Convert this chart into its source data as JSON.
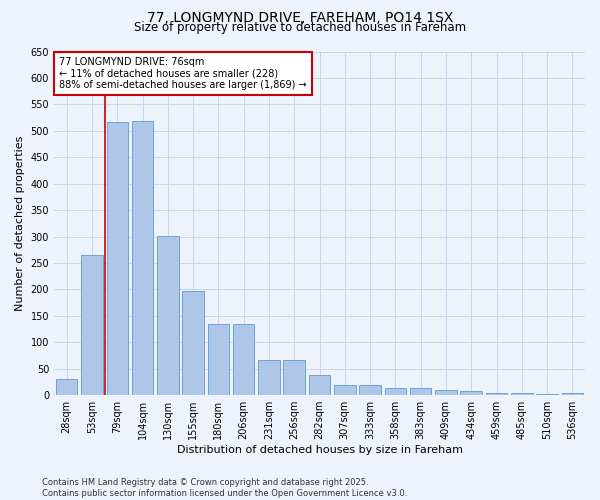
{
  "title_line1": "77, LONGMYND DRIVE, FAREHAM, PO14 1SX",
  "title_line2": "Size of property relative to detached houses in Fareham",
  "xlabel": "Distribution of detached houses by size in Fareham",
  "ylabel": "Number of detached properties",
  "categories": [
    "28sqm",
    "53sqm",
    "79sqm",
    "104sqm",
    "130sqm",
    "155sqm",
    "180sqm",
    "206sqm",
    "231sqm",
    "256sqm",
    "282sqm",
    "307sqm",
    "333sqm",
    "358sqm",
    "383sqm",
    "409sqm",
    "434sqm",
    "459sqm",
    "485sqm",
    "510sqm",
    "536sqm"
  ],
  "values": [
    30,
    265,
    517,
    519,
    302,
    198,
    135,
    135,
    67,
    67,
    38,
    20,
    20,
    14,
    14,
    9,
    8,
    5,
    4,
    3,
    5
  ],
  "bar_color": "#aec6e8",
  "bar_edgecolor": "#5b9bd5",
  "vline_color": "#cc0000",
  "vline_x": 1.5,
  "annotation_title": "77 LONGMYND DRIVE: 76sqm",
  "annotation_line1": "← 11% of detached houses are smaller (228)",
  "annotation_line2": "88% of semi-detached houses are larger (1,869) →",
  "annotation_box_color": "#cc0000",
  "ylim": [
    0,
    650
  ],
  "yticks": [
    0,
    50,
    100,
    150,
    200,
    250,
    300,
    350,
    400,
    450,
    500,
    550,
    600,
    650
  ],
  "footer_line1": "Contains HM Land Registry data © Crown copyright and database right 2025.",
  "footer_line2": "Contains public sector information licensed under the Open Government Licence v3.0.",
  "background_color": "#eef2fb",
  "grid_color": "#c8d4f0",
  "title_fontsize": 10,
  "subtitle_fontsize": 8.5,
  "xlabel_fontsize": 8,
  "ylabel_fontsize": 8,
  "tick_fontsize": 7,
  "annotation_fontsize": 7,
  "footer_fontsize": 6
}
